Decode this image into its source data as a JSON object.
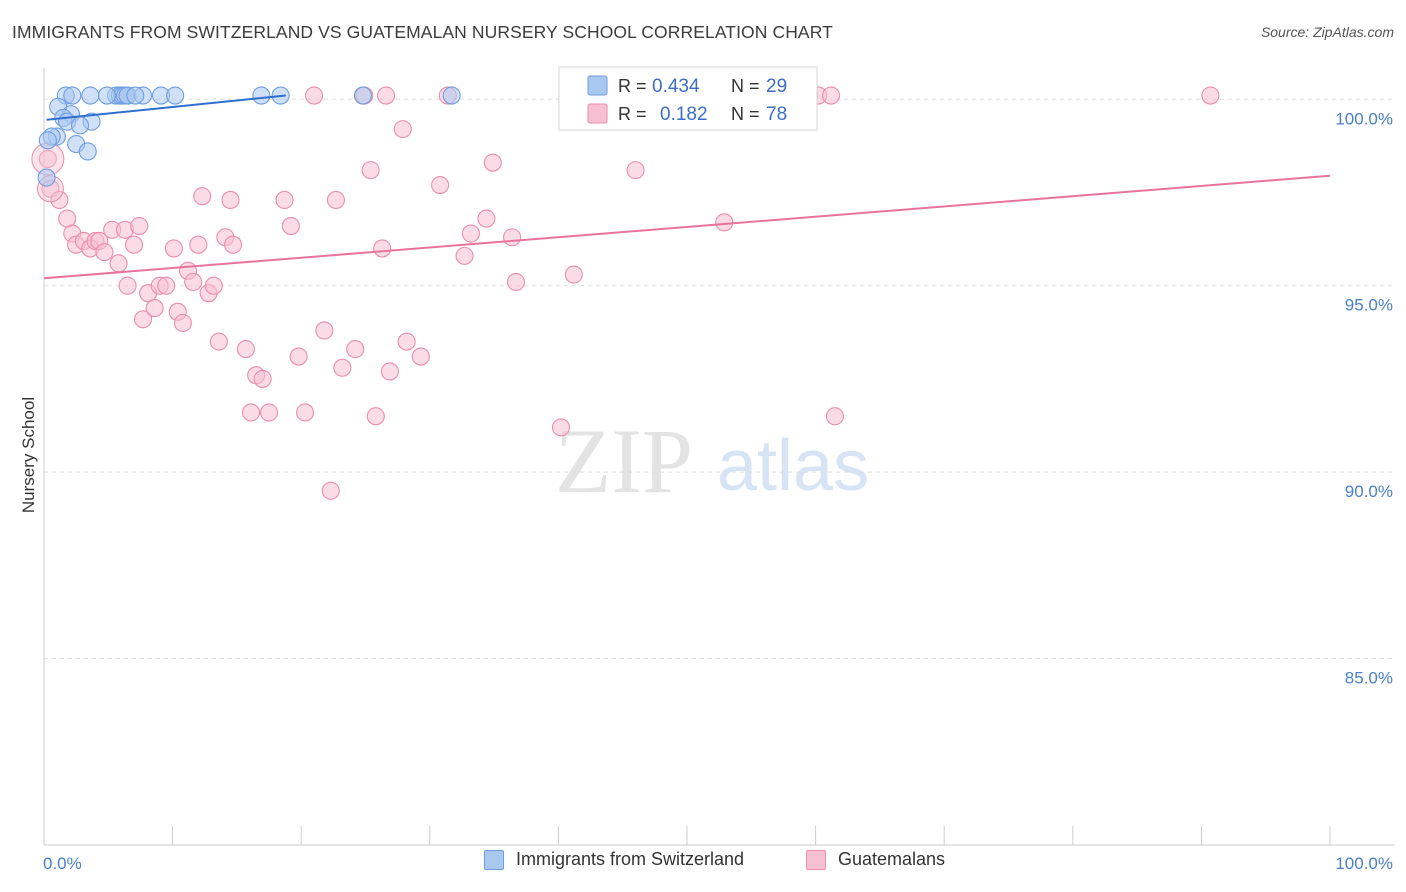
{
  "title": "IMMIGRANTS FROM SWITZERLAND VS GUATEMALAN NURSERY SCHOOL CORRELATION CHART",
  "source": "Source: ZipAtlas.com",
  "watermark": {
    "zip": "ZIP",
    "atlas": "atlas"
  },
  "colors": {
    "blue_fill": "#a9c8f0",
    "blue_stroke": "#6f9ede",
    "blue_line": "#2e6fd0",
    "pink_fill": "#f7c0d2",
    "pink_stroke": "#ea8eab",
    "pink_line": "#e8739b",
    "axis_text": "#4a7fc9",
    "grid": "#dddddd"
  },
  "legend_box": {
    "rows": [
      {
        "r_label": "R =",
        "r_value": "0.434",
        "n_label": "N =",
        "n_value": "29"
      },
      {
        "r_label": "R =",
        "r_value": "0.182",
        "n_label": "N =",
        "n_value": "78"
      }
    ]
  },
  "bottom_legend": {
    "items": [
      {
        "label": "Immigrants from Switzerland"
      },
      {
        "label": "Guatemalans"
      }
    ]
  },
  "chart_data": {
    "type": "scatter",
    "title": "IMMIGRANTS FROM SWITZERLAND VS GUATEMALAN NURSERY SCHOOL CORRELATION CHART",
    "xlabel": "",
    "ylabel": "Nursery School",
    "xlim": [
      0,
      100
    ],
    "ylim": [
      80.0,
      101.0
    ],
    "x_tick_labels": [
      "0.0%",
      "100.0%"
    ],
    "y_ticks": [
      {
        "value": 100.0,
        "label": "100.0%"
      },
      {
        "value": 95.0,
        "label": "95.0%"
      },
      {
        "value": 90.0,
        "label": "90.0%"
      },
      {
        "value": 85.0,
        "label": "85.0%"
      }
    ],
    "grid": true,
    "series": [
      {
        "name": "Immigrants from Switzerland",
        "color": "blue",
        "r": 0.434,
        "n": 29,
        "trend": [
          [
            0.2,
            99.45
          ],
          [
            18.8,
            100.1
          ]
        ],
        "points": [
          [
            1.7,
            100.1
          ],
          [
            2.2,
            100.1
          ],
          [
            3.6,
            100.1
          ],
          [
            5.6,
            100.1
          ],
          [
            5.9,
            100.1
          ],
          [
            6.1,
            100.1
          ],
          [
            6.3,
            100.1
          ],
          [
            6.5,
            100.1
          ],
          [
            7.7,
            100.1
          ],
          [
            9.1,
            100.1
          ],
          [
            10.2,
            100.1
          ],
          [
            16.9,
            100.1
          ],
          [
            18.4,
            100.1
          ],
          [
            24.8,
            100.1
          ],
          [
            31.7,
            100.1
          ],
          [
            1.1,
            99.8
          ],
          [
            2.1,
            99.6
          ],
          [
            1.5,
            99.5
          ],
          [
            1.8,
            99.4
          ],
          [
            3.7,
            99.4
          ],
          [
            1.0,
            99.0
          ],
          [
            2.8,
            99.3
          ],
          [
            2.5,
            98.8
          ],
          [
            3.4,
            98.6
          ],
          [
            0.6,
            99.0
          ],
          [
            0.3,
            98.9
          ],
          [
            0.2,
            97.9
          ],
          [
            4.9,
            100.1
          ],
          [
            7.1,
            100.1
          ]
        ]
      },
      {
        "name": "Guatemalans",
        "color": "pink",
        "r": 0.182,
        "n": 78,
        "trend": [
          [
            0.0,
            95.2
          ],
          [
            100.0,
            97.95
          ]
        ],
        "points": [
          [
            0.3,
            98.4
          ],
          [
            0.5,
            97.6
          ],
          [
            1.2,
            97.3
          ],
          [
            1.8,
            96.8
          ],
          [
            2.2,
            96.4
          ],
          [
            2.5,
            96.1
          ],
          [
            3.1,
            96.2
          ],
          [
            3.6,
            96.0
          ],
          [
            4.0,
            96.2
          ],
          [
            4.3,
            96.2
          ],
          [
            4.7,
            95.9
          ],
          [
            5.3,
            96.5
          ],
          [
            5.8,
            95.6
          ],
          [
            6.3,
            96.5
          ],
          [
            6.5,
            95.0
          ],
          [
            7.0,
            96.1
          ],
          [
            7.4,
            96.6
          ],
          [
            7.7,
            94.1
          ],
          [
            8.1,
            94.8
          ],
          [
            8.6,
            94.4
          ],
          [
            9.0,
            95.0
          ],
          [
            9.5,
            95.0
          ],
          [
            10.1,
            96.0
          ],
          [
            10.4,
            94.3
          ],
          [
            10.8,
            94.0
          ],
          [
            11.2,
            95.4
          ],
          [
            11.6,
            95.1
          ],
          [
            12.0,
            96.1
          ],
          [
            12.3,
            97.4
          ],
          [
            12.8,
            94.8
          ],
          [
            13.2,
            95.0
          ],
          [
            13.6,
            93.5
          ],
          [
            14.1,
            96.3
          ],
          [
            14.5,
            97.3
          ],
          [
            14.7,
            96.1
          ],
          [
            15.7,
            93.3
          ],
          [
            16.1,
            91.6
          ],
          [
            16.5,
            92.6
          ],
          [
            17.0,
            92.5
          ],
          [
            17.5,
            91.6
          ],
          [
            18.7,
            97.3
          ],
          [
            19.2,
            96.6
          ],
          [
            19.8,
            93.1
          ],
          [
            20.3,
            91.6
          ],
          [
            21.0,
            100.1
          ],
          [
            21.8,
            93.8
          ],
          [
            22.7,
            97.3
          ],
          [
            23.2,
            92.8
          ],
          [
            24.2,
            93.3
          ],
          [
            24.9,
            100.1
          ],
          [
            25.4,
            98.1
          ],
          [
            25.8,
            91.5
          ],
          [
            26.3,
            96.0
          ],
          [
            26.6,
            100.1
          ],
          [
            26.9,
            92.7
          ],
          [
            27.9,
            99.2
          ],
          [
            28.2,
            93.5
          ],
          [
            29.3,
            93.1
          ],
          [
            30.8,
            97.7
          ],
          [
            31.4,
            100.1
          ],
          [
            32.7,
            95.8
          ],
          [
            33.2,
            96.4
          ],
          [
            34.4,
            96.8
          ],
          [
            34.9,
            98.3
          ],
          [
            36.4,
            96.3
          ],
          [
            36.7,
            95.1
          ],
          [
            40.2,
            91.2
          ],
          [
            41.2,
            95.3
          ],
          [
            46.0,
            98.1
          ],
          [
            47.8,
            100.1
          ],
          [
            49.8,
            100.1
          ],
          [
            52.9,
            96.7
          ],
          [
            59.5,
            100.1
          ],
          [
            60.2,
            100.1
          ],
          [
            61.2,
            100.1
          ],
          [
            61.5,
            91.5
          ],
          [
            22.3,
            89.5
          ],
          [
            90.7,
            100.1
          ]
        ]
      }
    ]
  }
}
